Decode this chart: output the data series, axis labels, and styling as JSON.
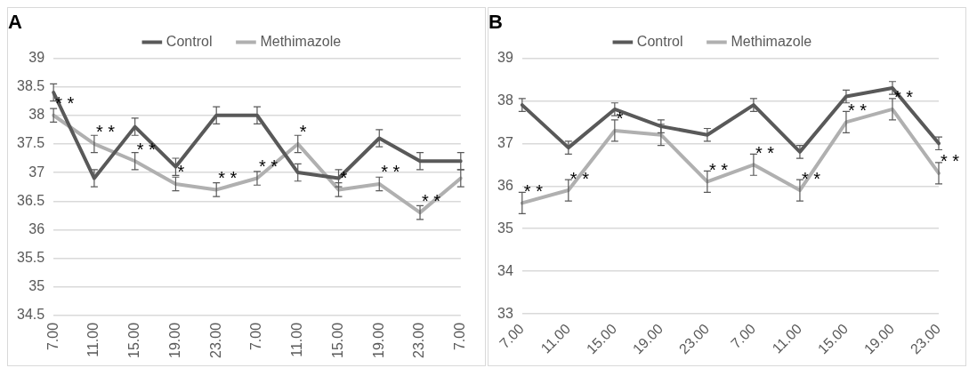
{
  "chart_data": [
    {
      "type": "line",
      "title": "A",
      "categories": [
        "7.00",
        "11.00",
        "15.00",
        "19.00",
        "23.00",
        "7.00",
        "11.00",
        "15.00",
        "19.00",
        "23.00",
        "7.00"
      ],
      "series": [
        {
          "name": "Control",
          "color": "#595959",
          "values": [
            38.4,
            36.9,
            37.8,
            37.1,
            38.0,
            38.0,
            37.0,
            36.9,
            37.6,
            37.2,
            37.2
          ],
          "errors": [
            0.15,
            0.15,
            0.15,
            0.15,
            0.15,
            0.15,
            0.15,
            0.15,
            0.15,
            0.15,
            0.15
          ]
        },
        {
          "name": "Methimazole",
          "color": "#b0b0b0",
          "values": [
            38.0,
            37.5,
            37.2,
            36.8,
            36.7,
            36.9,
            37.5,
            36.7,
            36.8,
            36.3,
            36.9
          ],
          "errors": [
            0.12,
            0.15,
            0.15,
            0.12,
            0.12,
            0.12,
            0.15,
            0.12,
            0.12,
            0.12,
            0.15
          ]
        }
      ],
      "ylim": [
        34.5,
        39
      ],
      "yticks": [
        34.5,
        35,
        35.5,
        36,
        36.5,
        37,
        37.5,
        38,
        38.5,
        39
      ],
      "grid": "y",
      "legend": "top",
      "marker": "none",
      "line_style": "solid",
      "annotations": [
        {
          "text": "* *",
          "x": "7.00",
          "y": 38.0
        },
        {
          "text": "* *",
          "x": "11.00",
          "y": 37.5
        },
        {
          "text": "* *",
          "x": "15.00",
          "y": 37.2
        },
        {
          "text": "*",
          "x": "19.00",
          "y": 36.8
        },
        {
          "text": "* *",
          "x": "23.00",
          "y": 36.7
        },
        "* *",
        "*",
        "*",
        "* *",
        "* *"
      ]
    },
    {
      "type": "line",
      "title": "B",
      "categories": [
        "7.00",
        "11.00",
        "15.00",
        "19.00",
        "23.00",
        "7.00",
        "11.00",
        "15.00",
        "19.00",
        "23.00"
      ],
      "series": [
        {
          "name": "Control",
          "color": "#595959",
          "values": [
            37.9,
            36.9,
            37.8,
            37.4,
            37.2,
            37.9,
            36.8,
            38.1,
            38.3,
            37.0
          ],
          "errors": [
            0.15,
            0.15,
            0.15,
            0.15,
            0.15,
            0.15,
            0.15,
            0.15,
            0.15,
            0.15
          ]
        },
        {
          "name": "Methimazole",
          "color": "#b0b0b0",
          "values": [
            35.6,
            35.9,
            37.3,
            37.2,
            36.1,
            36.5,
            35.9,
            37.5,
            37.8,
            36.3
          ],
          "errors": [
            0.25,
            0.25,
            0.25,
            0.25,
            0.25,
            0.25,
            0.25,
            0.25,
            0.25,
            0.25
          ]
        }
      ],
      "ylim": [
        33,
        39
      ],
      "yticks": [
        33,
        34,
        35,
        36,
        37,
        38,
        39
      ],
      "grid": "y",
      "legend": "top",
      "marker": "none",
      "line_style": "solid",
      "annotations": [
        {
          "text": "* *",
          "x": "7.00",
          "y": 35.6
        },
        {
          "text": "* *",
          "x": "11.00",
          "y": 35.9
        },
        {
          "text": "*",
          "x": "15.00",
          "y": 37.3
        },
        {
          "text": "* *",
          "x": "23.00",
          "y": 36.1
        },
        "* *",
        "* *",
        "* *",
        "* *",
        "* *"
      ]
    }
  ]
}
